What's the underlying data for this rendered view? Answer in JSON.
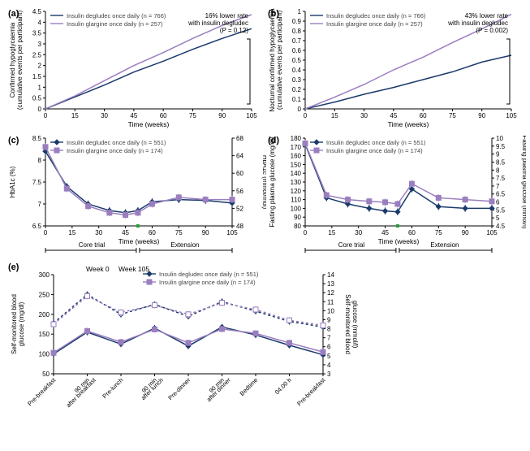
{
  "colors": {
    "degludec": "#1a3a6b",
    "glargine": "#9a7ebf",
    "axis": "#000000",
    "bg": "#ffffff"
  },
  "panel_a": {
    "label": "(a)",
    "type": "line",
    "xlim": [
      0,
      105
    ],
    "ylim": [
      0,
      4.5
    ],
    "xticks": [
      0,
      15,
      30,
      45,
      60,
      75,
      90,
      105
    ],
    "yticks": [
      0,
      0.5,
      1.0,
      1.5,
      2.0,
      2.5,
      3.0,
      3.5,
      4.0,
      4.5
    ],
    "xlabel": "Time (weeks)",
    "ylabel": "Confirmed hypoglycaemia\n(cumulative events per participant)",
    "annotation": "16% lower rate\nwith insulin degludec\n(P = 0.12)",
    "legend": [
      {
        "label": "Insulin degludec once daily (n = 766)",
        "color": "degludec"
      },
      {
        "label": "Insulin glargine once daily (n = 257)",
        "color": "glargine"
      }
    ],
    "series": {
      "degludec": [
        [
          0,
          0
        ],
        [
          15,
          0.55
        ],
        [
          30,
          1.1
        ],
        [
          45,
          1.7
        ],
        [
          60,
          2.2
        ],
        [
          75,
          2.75
        ],
        [
          90,
          3.25
        ],
        [
          105,
          3.7
        ]
      ],
      "glargine": [
        [
          0,
          0
        ],
        [
          15,
          0.6
        ],
        [
          30,
          1.3
        ],
        [
          45,
          2.0
        ],
        [
          60,
          2.6
        ],
        [
          75,
          3.25
        ],
        [
          90,
          3.85
        ],
        [
          105,
          4.35
        ]
      ]
    }
  },
  "panel_b": {
    "label": "(b)",
    "type": "line",
    "xlim": [
      0,
      105
    ],
    "ylim": [
      0,
      1.0
    ],
    "xticks": [
      0,
      15,
      30,
      45,
      60,
      75,
      90,
      105
    ],
    "yticks": [
      0,
      0.1,
      0.2,
      0.3,
      0.4,
      0.5,
      0.6,
      0.7,
      0.8,
      0.9,
      1.0
    ],
    "xlabel": "Time (weeks)",
    "ylabel": "Nocturnal confirmed hypoglycaemia\n(cumulative events per participant)",
    "annotation": "43% lower rate\nwith insulin degludec\n(P = 0.002)",
    "legend": [
      {
        "label": "Insulin degludec once daily (n = 766)",
        "color": "degludec"
      },
      {
        "label": "Insulin glargine once daily (n = 257)",
        "color": "glargine"
      }
    ],
    "series": {
      "degludec": [
        [
          0,
          0
        ],
        [
          15,
          0.07
        ],
        [
          30,
          0.15
        ],
        [
          45,
          0.22
        ],
        [
          60,
          0.3
        ],
        [
          75,
          0.38
        ],
        [
          90,
          0.48
        ],
        [
          105,
          0.55
        ]
      ],
      "glargine": [
        [
          0,
          0
        ],
        [
          15,
          0.12
        ],
        [
          30,
          0.25
        ],
        [
          45,
          0.4
        ],
        [
          60,
          0.53
        ],
        [
          75,
          0.68
        ],
        [
          90,
          0.82
        ],
        [
          105,
          0.97
        ]
      ]
    }
  },
  "panel_c": {
    "label": "(c)",
    "type": "line-markers",
    "xlim": [
      0,
      105
    ],
    "ylim": [
      6.5,
      8.5
    ],
    "ylim2": [
      48,
      68
    ],
    "xticks": [
      0,
      15,
      30,
      45,
      60,
      75,
      90,
      105
    ],
    "yticks": [
      6.5,
      7.0,
      7.5,
      8.0,
      8.5
    ],
    "yticks2": [
      48,
      52,
      56,
      60,
      64,
      68
    ],
    "xlabel": "Time (weeks)",
    "ylabel": "HbA1c (%)",
    "ylabel2": "HbA1c (mmol/mol)",
    "phase_labels": [
      "Core trial",
      "Extension"
    ],
    "phase_split": 52,
    "legend": [
      {
        "label": "Insulin degludec once daily (n = 551)",
        "color": "degludec",
        "marker": "diamond"
      },
      {
        "label": "Insulin glargine once daily (n = 174)",
        "color": "glargine",
        "marker": "square"
      }
    ],
    "series": {
      "degludec": [
        [
          0,
          8.2
        ],
        [
          12,
          7.4
        ],
        [
          24,
          7.0
        ],
        [
          36,
          6.85
        ],
        [
          45,
          6.8
        ],
        [
          52,
          6.85
        ],
        [
          60,
          7.05
        ],
        [
          75,
          7.1
        ],
        [
          90,
          7.08
        ],
        [
          105,
          7.02
        ]
      ],
      "glargine": [
        [
          0,
          8.3
        ],
        [
          12,
          7.35
        ],
        [
          24,
          6.95
        ],
        [
          36,
          6.8
        ],
        [
          45,
          6.75
        ],
        [
          52,
          6.8
        ],
        [
          60,
          7.0
        ],
        [
          75,
          7.15
        ],
        [
          90,
          7.1
        ],
        [
          105,
          7.1
        ]
      ]
    },
    "err": 0.08
  },
  "panel_d": {
    "label": "(d)",
    "type": "line-markers",
    "xlim": [
      0,
      105
    ],
    "ylim": [
      80,
      180
    ],
    "ylim2": [
      4.5,
      10.0
    ],
    "xticks": [
      0,
      15,
      30,
      45,
      60,
      75,
      90,
      105
    ],
    "yticks": [
      80,
      90,
      100,
      110,
      120,
      130,
      140,
      150,
      160,
      170,
      180
    ],
    "yticks2": [
      4.5,
      5.0,
      5.5,
      6.0,
      6.5,
      7.0,
      7.5,
      8.0,
      8.5,
      9.0,
      9.5,
      10.0
    ],
    "xlabel": "Time (weeks)",
    "ylabel": "Fasting plasma glucose (mg/dl)",
    "ylabel2": "Fasting plasma glucose (mmol/l)",
    "phase_labels": [
      "Core trial",
      "Extension"
    ],
    "phase_split": 52,
    "legend": [
      {
        "label": "Insulin degludec once daily (n = 551)",
        "color": "degludec",
        "marker": "diamond"
      },
      {
        "label": "Insulin glargine once daily (n = 174)",
        "color": "glargine",
        "marker": "square"
      }
    ],
    "series": {
      "degludec": [
        [
          0,
          173
        ],
        [
          12,
          112
        ],
        [
          24,
          105
        ],
        [
          36,
          100
        ],
        [
          45,
          97
        ],
        [
          52,
          96
        ],
        [
          60,
          122
        ],
        [
          75,
          102
        ],
        [
          90,
          100
        ],
        [
          105,
          100
        ]
      ],
      "glargine": [
        [
          0,
          174
        ],
        [
          12,
          115
        ],
        [
          24,
          110
        ],
        [
          36,
          108
        ],
        [
          45,
          107
        ],
        [
          52,
          105
        ],
        [
          60,
          128
        ],
        [
          75,
          112
        ],
        [
          90,
          110
        ],
        [
          105,
          108
        ]
      ]
    },
    "err": 4
  },
  "panel_e": {
    "label": "(e)",
    "type": "line-markers-9pt",
    "ylim": [
      50,
      300
    ],
    "ylim2": [
      3,
      14
    ],
    "yticks": [
      50,
      100,
      150,
      200,
      250,
      300
    ],
    "yticks2": [
      3,
      4,
      5,
      6,
      7,
      8,
      9,
      10,
      11,
      12,
      13,
      14
    ],
    "xlabel": "",
    "ylabel": "Self-monitored blood\nglucose (mg/dl)",
    "ylabel2": "Self-monitored blood\nglucose (mmol/l)",
    "header_labels": [
      "Week 0",
      "Week 105"
    ],
    "categories": [
      "Pre-breakfast",
      "90 min\nafter breakfast",
      "Pre-lunch",
      "90 min\nafter lunch",
      "Pre-dinner",
      "90 min\nafter dinner",
      "Bedtime",
      "04.00 h",
      "Pre-breakfast"
    ],
    "legend": [
      {
        "label": "Insulin degludec once daily (n = 551)",
        "color": "degludec",
        "marker": "diamond"
      },
      {
        "label": "Insulin glargine once daily (n = 174)",
        "color": "glargine",
        "marker": "square"
      }
    ],
    "series": {
      "degludec_w0": [
        178,
        250,
        200,
        225,
        195,
        232,
        208,
        182,
        168
      ],
      "glargine_w0": [
        175,
        246,
        205,
        223,
        200,
        229,
        212,
        185,
        172
      ],
      "degludec_w105": [
        100,
        155,
        125,
        165,
        120,
        168,
        148,
        122,
        98
      ],
      "glargine_w105": [
        103,
        158,
        130,
        162,
        128,
        163,
        152,
        128,
        105
      ]
    },
    "err": 8
  }
}
